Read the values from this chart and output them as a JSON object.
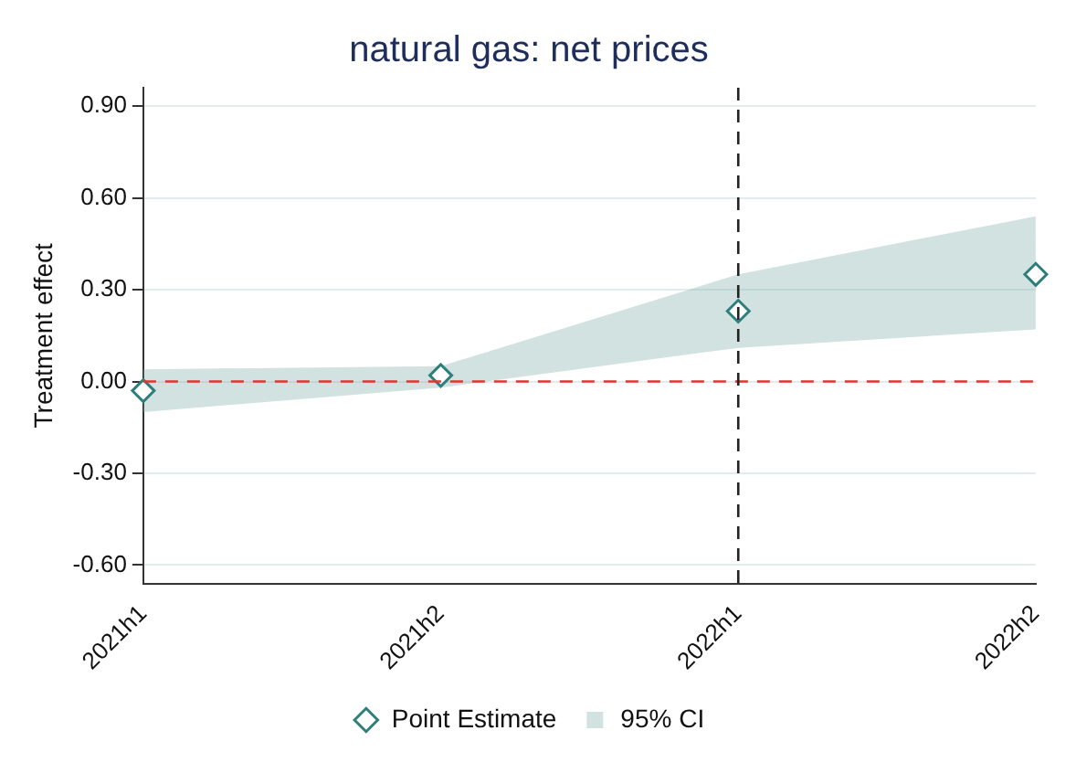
{
  "chart_data": {
    "type": "scatter",
    "title": "natural gas: net prices",
    "ylabel": "Treatment effect",
    "categories": [
      "2021h1",
      "2021h2",
      "2022h1",
      "2022h2"
    ],
    "series": [
      {
        "name": "Point Estimate",
        "color": "#2e7f7c",
        "values": [
          -0.03,
          0.02,
          0.23,
          0.35
        ]
      },
      {
        "name": "95% CI",
        "type": "area",
        "color": "#7fb0ad",
        "values": [
          null,
          null,
          null,
          null
        ],
        "lower": [
          -0.1,
          -0.02,
          0.11,
          0.17
        ],
        "upper": [
          0.04,
          0.05,
          0.35,
          0.54
        ]
      }
    ],
    "marker": "diamond",
    "ylim": [
      -0.66,
      0.96
    ],
    "yticks": [
      {
        "value": -0.6,
        "label": "-0.60"
      },
      {
        "value": -0.3,
        "label": "-0.30"
      },
      {
        "value": 0,
        "label": "0.00"
      },
      {
        "value": 0.3,
        "label": "0.30"
      },
      {
        "value": 0.6,
        "label": "0.60"
      },
      {
        "value": 0.9,
        "label": "0.90"
      }
    ],
    "ref_lines": [
      {
        "axis": "y",
        "value": 0,
        "color": "#e8332e",
        "line_style": "dashed"
      },
      {
        "axis": "x",
        "value": "2022h1",
        "color": "#222222",
        "line_style": "dashed"
      }
    ],
    "grid": "y",
    "legend": "bottom"
  }
}
